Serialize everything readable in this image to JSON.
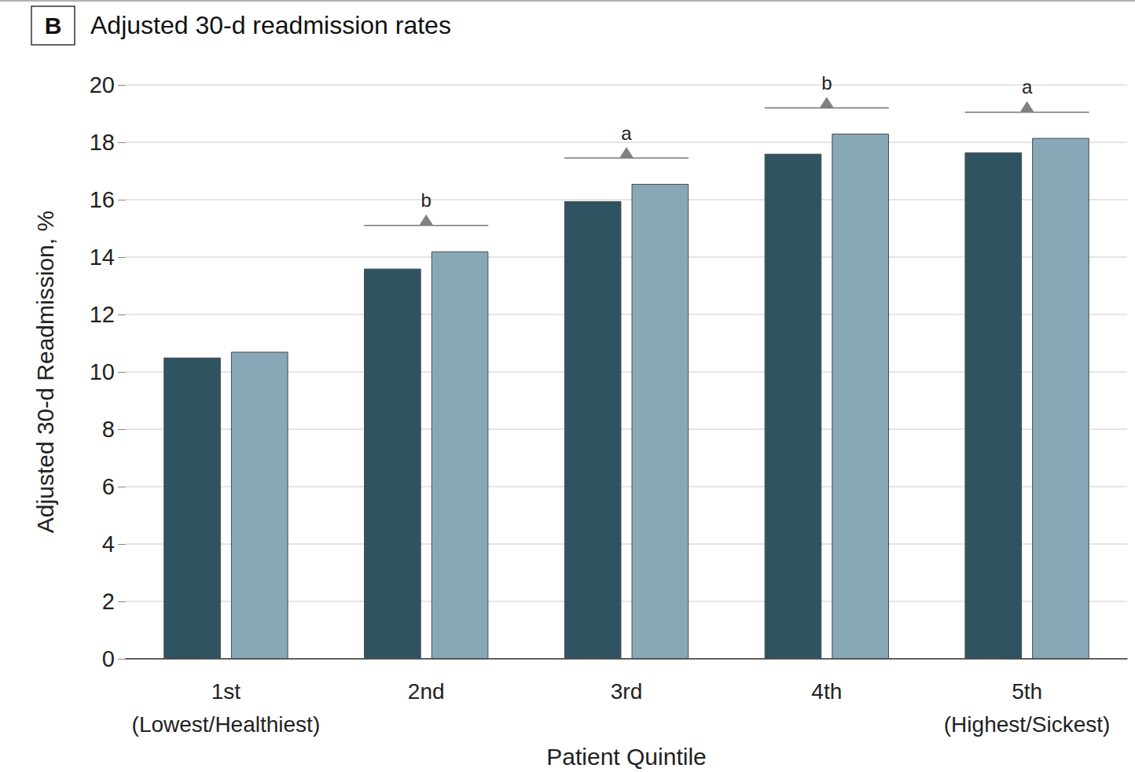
{
  "chart_data": {
    "type": "bar",
    "panel_label": "B",
    "title": "Adjusted 30-d readmission rates",
    "x_label": "Patient Quintile",
    "y_label": "Adjusted 30-d Readmission, %",
    "categories": [
      "1st\n(Lowest/Healthiest)",
      "2nd",
      "3rd",
      "4th",
      "5th\n(Highest/Sickest)"
    ],
    "series": [
      {
        "color": "#2f5361",
        "values": [
          10.5,
          13.6,
          15.95,
          17.6,
          17.65
        ]
      },
      {
        "color": "#88a8b8",
        "values": [
          10.7,
          14.2,
          16.55,
          18.3,
          18.15
        ]
      }
    ],
    "annotations": [
      null,
      "b",
      "a",
      "b",
      "a"
    ],
    "ylim": [
      0,
      20
    ],
    "yticks": [
      0,
      2,
      4,
      6,
      8,
      10,
      12,
      14,
      16,
      18,
      20
    ],
    "grid": true
  }
}
